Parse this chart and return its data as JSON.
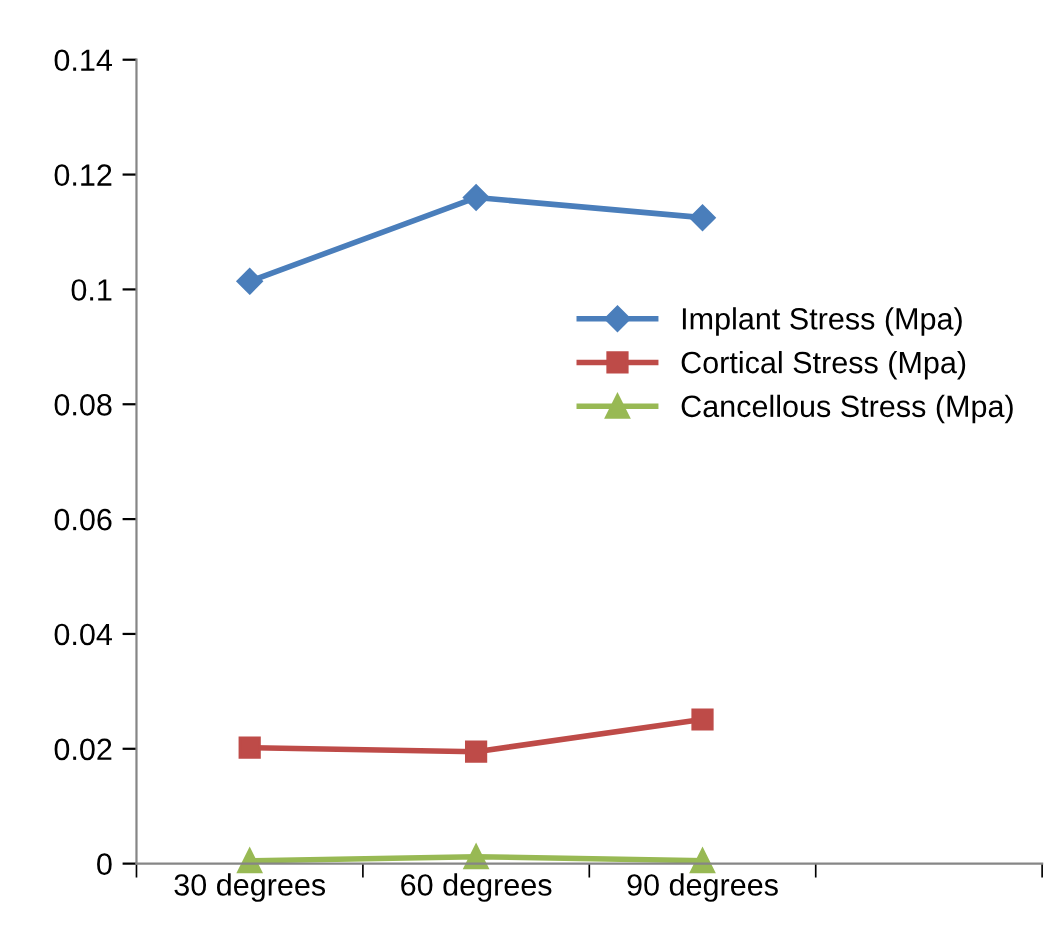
{
  "chart_data": {
    "type": "line",
    "categories": [
      "30 degrees",
      "60 degrees",
      "90 degrees",
      null
    ],
    "series": [
      {
        "name": "Implant Stress (Mpa)",
        "color": "#4a7ebb",
        "marker": "diamond",
        "values": [
          0.1014,
          0.116,
          0.1125,
          null
        ]
      },
      {
        "name": "Cortical Stress (Mpa)",
        "color": "#be4b48",
        "marker": "square",
        "values": [
          0.0202,
          0.0195,
          0.0251,
          null
        ]
      },
      {
        "name": "Cancellous Stress (Mpa)",
        "color": "#98b954",
        "marker": "triangle",
        "values": [
          0.0005,
          0.0012,
          0.0005,
          null
        ]
      }
    ],
    "ylim": [
      0,
      0.14
    ],
    "yticks": [
      0,
      0.02,
      0.04,
      0.06,
      0.08,
      0.1,
      0.12,
      0.14
    ],
    "grid": false,
    "legend": "right",
    "line_style": "solid"
  }
}
